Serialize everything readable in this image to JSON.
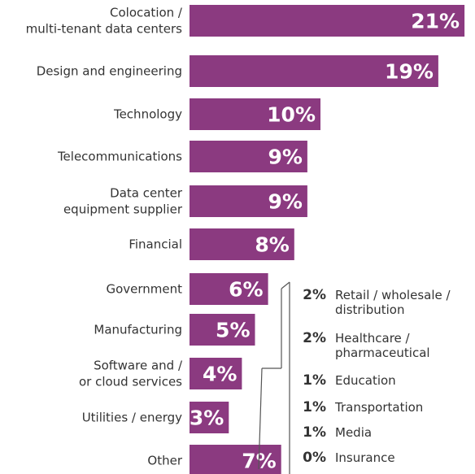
{
  "colors": {
    "bar": "#8b3a80",
    "value_text": "#ffffff",
    "label_text": "#333333",
    "connector": "#555555"
  },
  "chart_data": {
    "type": "bar",
    "orientation": "horizontal",
    "title": "",
    "xlabel": "",
    "ylabel": "",
    "xlim": [
      0,
      21
    ],
    "grid": false,
    "categories": [
      [
        "Colocation /",
        "multi-tenant data centers"
      ],
      [
        "Design and engineering"
      ],
      [
        "Technology"
      ],
      [
        "Telecommunications"
      ],
      [
        "Data center",
        "equipment supplier"
      ],
      [
        "Financial"
      ],
      [
        "Government"
      ],
      [
        "Manufacturing"
      ],
      [
        "Software and /",
        "or cloud services"
      ],
      [
        "Utilities / energy"
      ],
      [
        "Other"
      ]
    ],
    "values": [
      21,
      19,
      10,
      9,
      9,
      8,
      6,
      5,
      4,
      3,
      7
    ],
    "value_labels": [
      "21%",
      "19%",
      "10%",
      "9%",
      "9%",
      "8%",
      "6%",
      "5%",
      "4%",
      "3%",
      "7%"
    ],
    "other_breakdown": [
      {
        "value": 2,
        "label": "2%",
        "name": [
          "Retail / wholesale /",
          "distribution"
        ]
      },
      {
        "value": 2,
        "label": "2%",
        "name": [
          "Healthcare /",
          "pharmaceutical"
        ]
      },
      {
        "value": 1,
        "label": "1%",
        "name": [
          "Education"
        ]
      },
      {
        "value": 1,
        "label": "1%",
        "name": [
          "Transportation"
        ]
      },
      {
        "value": 1,
        "label": "1%",
        "name": [
          "Media"
        ]
      },
      {
        "value": 0,
        "label": "0%",
        "name": [
          "Insurance"
        ]
      }
    ]
  }
}
